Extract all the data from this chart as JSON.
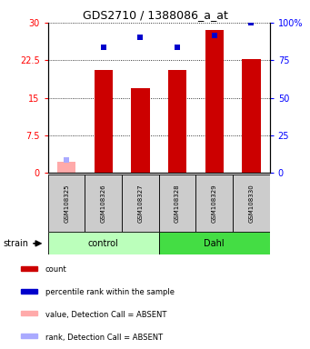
{
  "title": "GDS2710 / 1388086_a_at",
  "samples": [
    "GSM108325",
    "GSM108326",
    "GSM108327",
    "GSM108328",
    "GSM108329",
    "GSM108330"
  ],
  "count_values": [
    2.2,
    20.5,
    17.0,
    20.5,
    28.5,
    22.7
  ],
  "rank_values": [
    2.5,
    25.0,
    27.0,
    25.0,
    27.5,
    30.0
  ],
  "absent_flags": [
    true,
    false,
    false,
    false,
    false,
    false
  ],
  "ylim_left": [
    0,
    30
  ],
  "ylim_right": [
    0,
    100
  ],
  "yticks_left": [
    0,
    7.5,
    15,
    22.5,
    30
  ],
  "ytick_labels_left": [
    "0",
    "7.5",
    "15",
    "22.5",
    "30"
  ],
  "yticks_right": [
    0,
    25,
    50,
    75,
    100
  ],
  "ytick_labels_right": [
    "0",
    "25",
    "50",
    "75",
    "100%"
  ],
  "bar_width": 0.5,
  "bar_color_present": "#cc0000",
  "bar_color_absent": "#ffaaaa",
  "rank_color_present": "#0000cc",
  "rank_color_absent": "#aaaaff",
  "group_control_color": "#bbffbb",
  "group_dahl_color": "#44dd44",
  "bg_color": "#cccccc",
  "plot_bg": "#ffffff",
  "legend_items": [
    {
      "color": "#cc0000",
      "label": "count"
    },
    {
      "color": "#0000cc",
      "label": "percentile rank within the sample"
    },
    {
      "color": "#ffaaaa",
      "label": "value, Detection Call = ABSENT"
    },
    {
      "color": "#aaaaff",
      "label": "rank, Detection Call = ABSENT"
    }
  ]
}
